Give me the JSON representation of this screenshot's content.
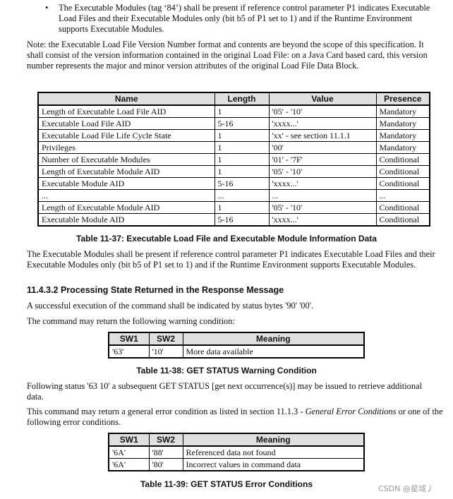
{
  "bullet": "The Executable Modules (tag ‘84’) shall be present if reference control parameter P1 indicates Executable Load Files and their Executable Modules only (bit b5 of P1 set to 1) and if the Runtime Environment supports Executable Modules.",
  "note": "Note: the Executable Load File Version Number format and contents are beyond the scope of this specification. It shall consist of the version information contained in the original Load File: on a Java Card based card, this version number represents the major and minor version attributes of the original Load File Data Block.",
  "table1": {
    "headers": [
      "Name",
      "Length",
      "Value",
      "Presence"
    ],
    "rows": [
      [
        "Length of Executable Load File AID",
        "1",
        "'05' - '10'",
        "Mandatory"
      ],
      [
        "Executable Load File AID",
        "5-16",
        "'xxxx...'",
        "Mandatory"
      ],
      [
        "Executable Load File Life Cycle State",
        "1",
        "'xx' - see section 11.1.1",
        "Mandatory"
      ],
      [
        "Privileges",
        "1",
        "'00'",
        "Mandatory"
      ],
      [
        "Number of Executable Modules",
        "1",
        "'01' - '7F'",
        "Conditional"
      ],
      [
        "Length of Executable Module AID",
        "1",
        "'05' - '10'",
        "Conditional"
      ],
      [
        "Executable Module AID",
        "5-16",
        "'xxxx...'",
        "Conditional"
      ],
      [
        "...",
        "...",
        "...",
        "..."
      ],
      [
        "Length of Executable Module AID",
        "1",
        "'05' - '10'",
        "Conditional"
      ],
      [
        "Executable Module AID",
        "5-16",
        "'xxxx...'",
        "Conditional"
      ]
    ],
    "caption": "Table 11-37: Executable Load File and Executable Module Information Data"
  },
  "para1": "The Executable Modules shall be present if reference control parameter P1 indicates Executable Load Files and their Executable Modules only (bit b5 of P1 set to 1) and if the Runtime Environment supports Executable Modules.",
  "heading": "11.4.3.2  Processing State Returned in the Response Message",
  "para2": "A successful execution of the command shall be indicated by status  bytes '90' '00'.",
  "para3": "The command may return the following warning condition:",
  "table2": {
    "headers": [
      "SW1",
      "SW2",
      "Meaning"
    ],
    "rows": [
      [
        "'63'",
        "'10'",
        "More data available"
      ]
    ],
    "caption": "Table 11-38: GET STATUS Warning Condition"
  },
  "para4": "Following status '63 10' a subsequent GET STATUS [get next occurrence(s)] may be issued to retrieve additional data.",
  "para5_a": "This command may return a general error condition as listed in section 11.1.3 - ",
  "para5_i": "General Error Conditions",
  "para5_b": " or one of the following error conditions.",
  "table3": {
    "headers": [
      "SW1",
      "SW2",
      "Meaning"
    ],
    "rows": [
      [
        "'6A'",
        "'88'",
        "Referenced data not found"
      ],
      [
        "'6A'",
        "'80'",
        "Incorrect values in command data"
      ]
    ],
    "caption": "Table 11-39: GET STATUS Error Conditions"
  },
  "watermark": "CSDN @星域丿"
}
